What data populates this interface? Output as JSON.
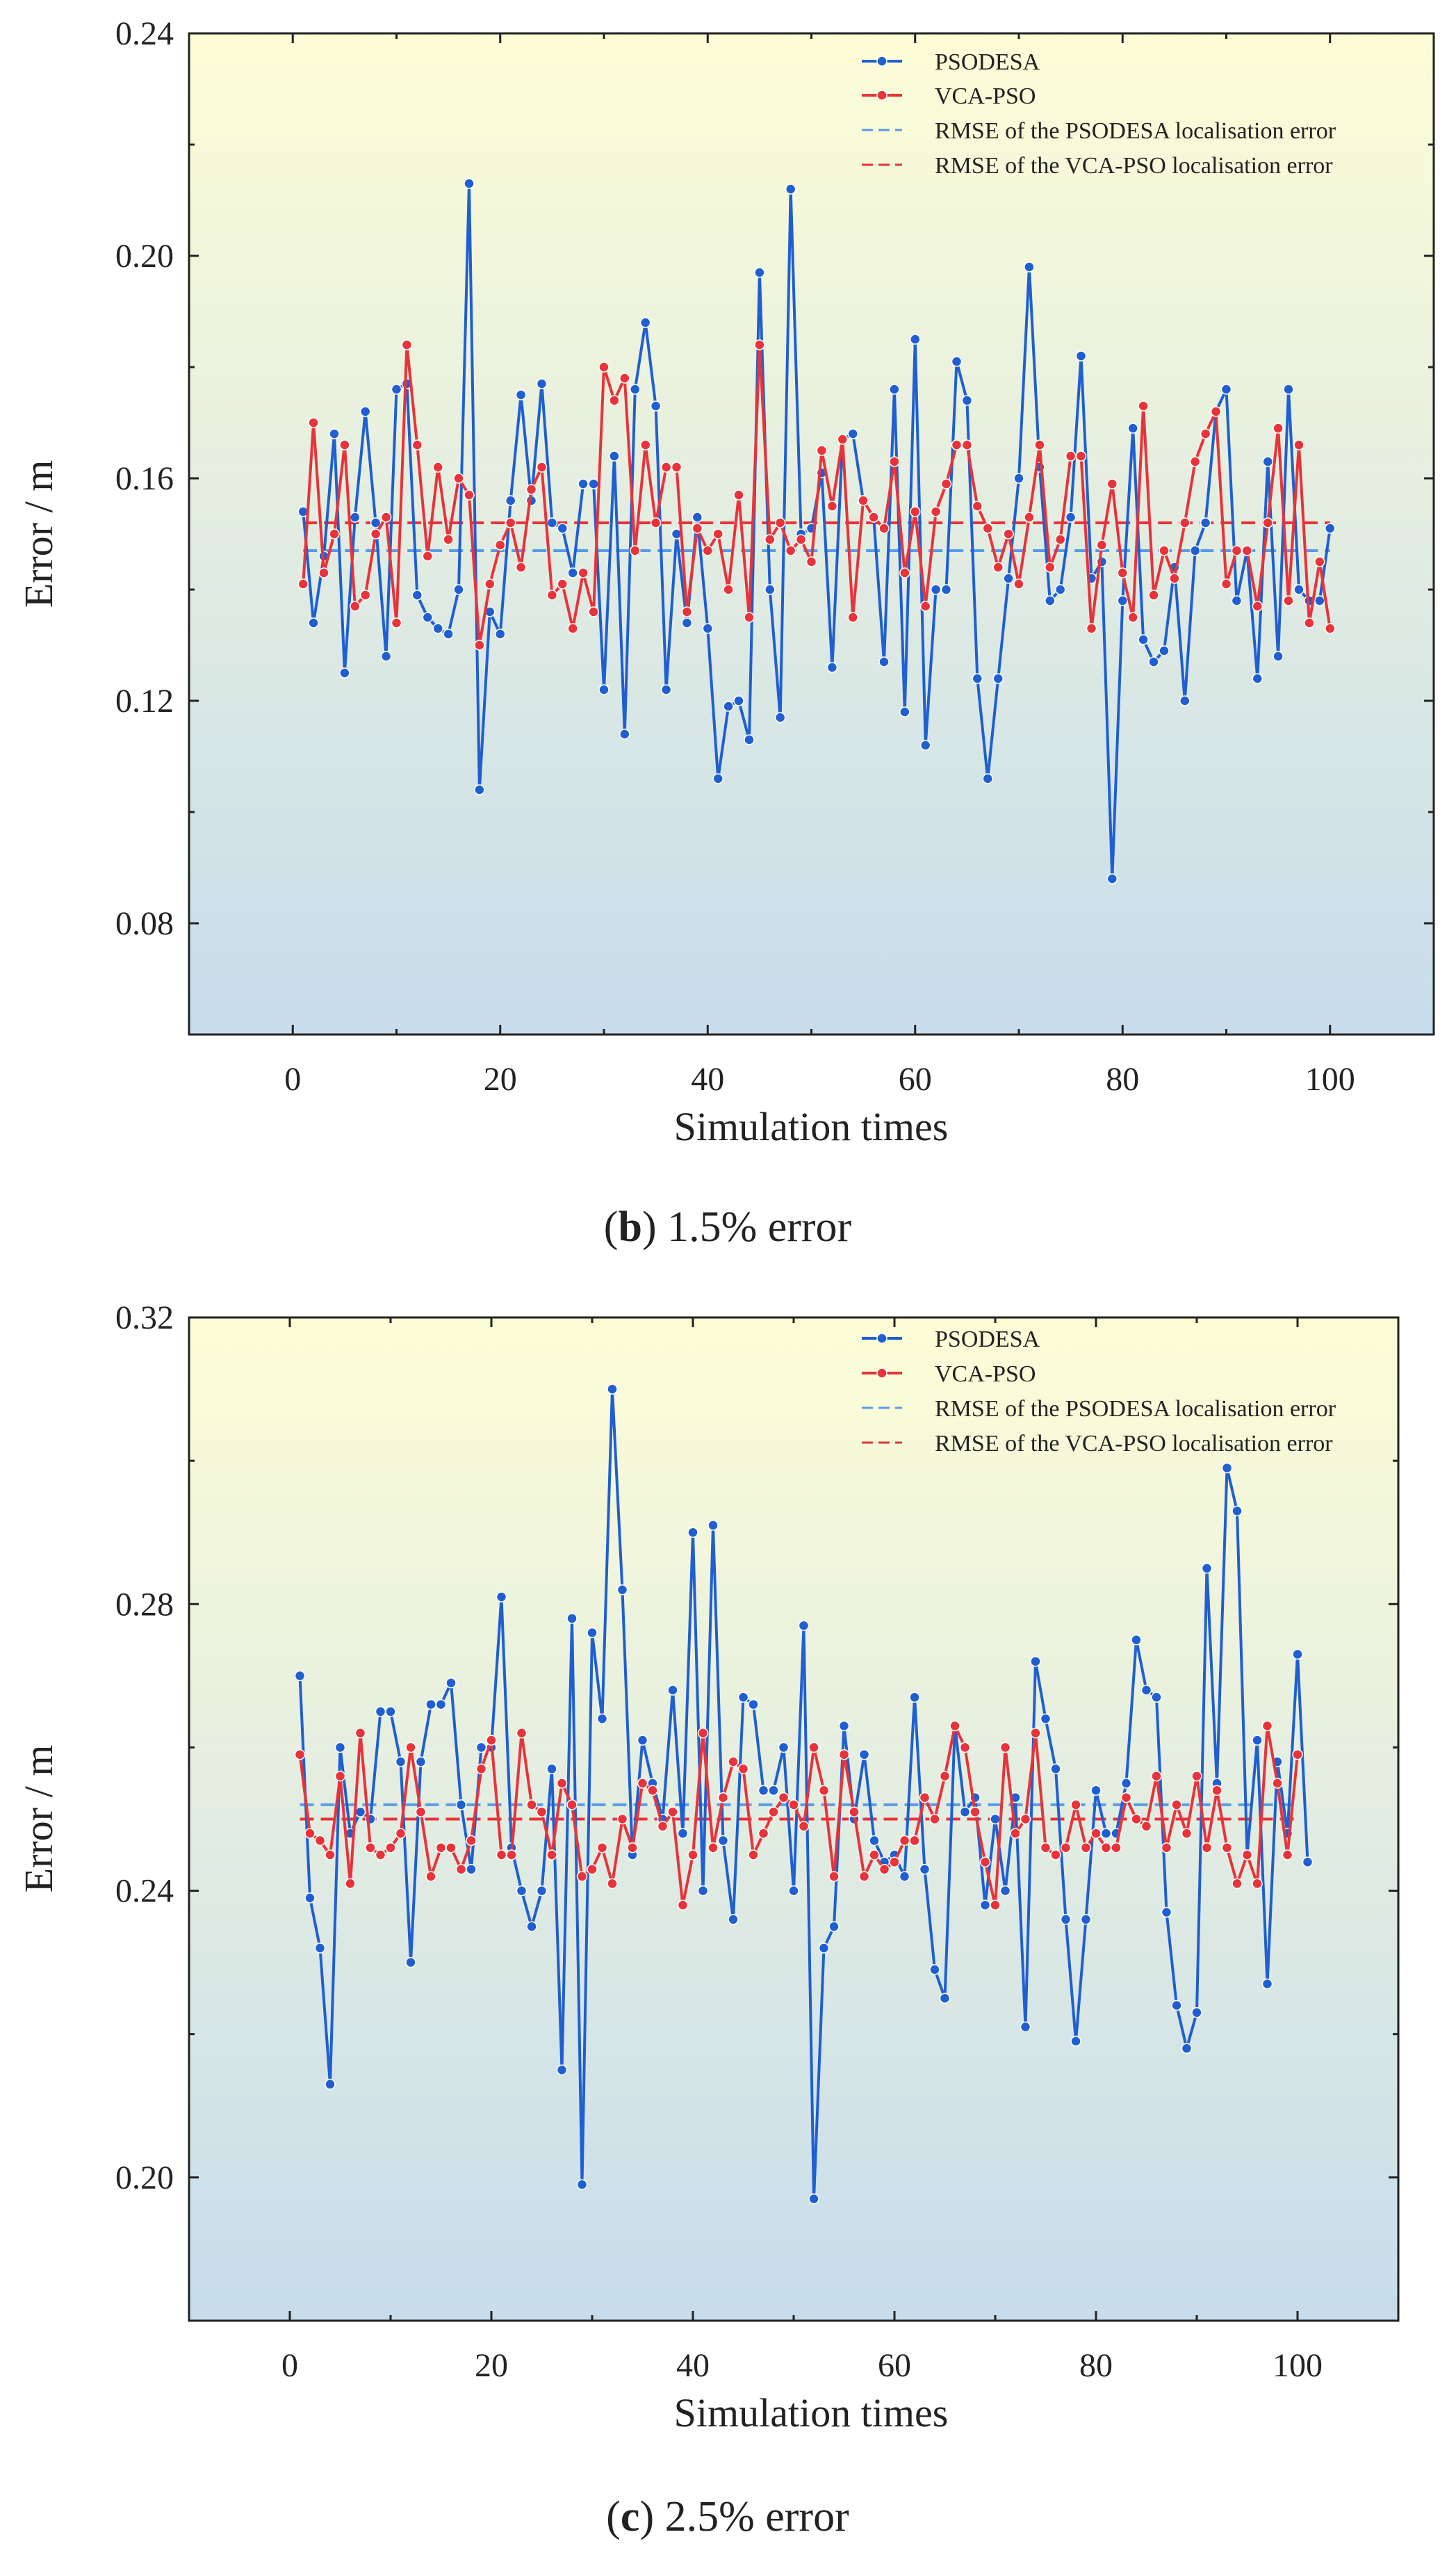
{
  "colors": {
    "psodesa": "#1f5fd1",
    "vca_pso": "#e8333a",
    "rmse_psodesa": "#5b9be6",
    "rmse_vca_pso": "#e8333a",
    "bg_top": "#fdfdd6",
    "bg_bottom": "#c7dcec"
  },
  "chart_data": [
    {
      "id": "b",
      "type": "line",
      "xlabel": "Simulation times",
      "ylabel": "Error / m",
      "xlim": [
        -10,
        110
      ],
      "ylim": [
        0.06,
        0.24
      ],
      "xticks": [
        0,
        20,
        40,
        60,
        80,
        100
      ],
      "xtick_labels": [
        "0",
        "20",
        "40",
        "60",
        "80",
        "100"
      ],
      "yticks": [
        0.08,
        0.12,
        0.16,
        0.2,
        0.24
      ],
      "ytick_labels": [
        "0.08",
        "0.12",
        "0.16",
        "0.20",
        "0.24"
      ],
      "caption": {
        "letter": "b",
        "text": " 1.5% error"
      },
      "legend": {
        "position": "top-right",
        "entries": [
          "PSODESA",
          "VCA-PSO",
          "RMSE of the PSODESA localisation error",
          "RMSE of the VCA-PSO localisation error"
        ]
      },
      "series": [
        {
          "name": "PSODESA",
          "x_start": 1,
          "values": [
            0.154,
            0.134,
            0.146,
            0.168,
            0.125,
            0.153,
            0.172,
            0.152,
            0.128,
            0.176,
            0.177,
            0.139,
            0.135,
            0.133,
            0.132,
            0.14,
            0.213,
            0.104,
            0.136,
            0.132,
            0.156,
            0.175,
            0.156,
            0.177,
            0.152,
            0.151,
            0.143,
            0.159,
            0.159,
            0.122,
            0.164,
            0.114,
            0.176,
            0.188,
            0.173,
            0.122,
            0.15,
            0.134,
            0.153,
            0.133,
            0.106,
            0.119,
            0.12,
            0.113,
            0.197,
            0.14,
            0.117,
            0.212,
            0.15,
            0.151,
            0.161,
            0.126,
            0.167,
            0.168,
            0.156,
            0.153,
            0.127,
            0.176,
            0.118,
            0.185,
            0.112,
            0.14,
            0.14,
            0.181,
            0.174,
            0.124,
            0.106,
            0.124,
            0.142,
            0.16,
            0.198,
            0.162,
            0.138,
            0.14,
            0.153,
            0.182,
            0.142,
            0.145,
            0.088,
            0.138,
            0.169,
            0.131,
            0.127,
            0.129,
            0.144,
            0.12,
            0.147,
            0.152,
            0.172,
            0.176,
            0.138,
            0.147,
            0.124,
            0.163,
            0.128,
            0.176,
            0.14,
            0.138,
            0.138,
            0.151
          ]
        },
        {
          "name": "VCA-PSO",
          "x_start": 1,
          "values": [
            0.141,
            0.17,
            0.143,
            0.15,
            0.166,
            0.137,
            0.139,
            0.15,
            0.153,
            0.134,
            0.184,
            0.166,
            0.146,
            0.162,
            0.149,
            0.16,
            0.157,
            0.13,
            0.141,
            0.148,
            0.152,
            0.144,
            0.158,
            0.162,
            0.139,
            0.141,
            0.133,
            0.143,
            0.136,
            0.18,
            0.174,
            0.178,
            0.147,
            0.166,
            0.152,
            0.162,
            0.162,
            0.136,
            0.151,
            0.147,
            0.15,
            0.14,
            0.157,
            0.135,
            0.184,
            0.149,
            0.152,
            0.147,
            0.149,
            0.145,
            0.165,
            0.155,
            0.167,
            0.135,
            0.156,
            0.153,
            0.151,
            0.163,
            0.143,
            0.154,
            0.137,
            0.154,
            0.159,
            0.166,
            0.166,
            0.155,
            0.151,
            0.144,
            0.15,
            0.141,
            0.153,
            0.166,
            0.144,
            0.149,
            0.164,
            0.164,
            0.133,
            0.148,
            0.159,
            0.143,
            0.135,
            0.173,
            0.139,
            0.147,
            0.142,
            0.152,
            0.163,
            0.168,
            0.172,
            0.141,
            0.147,
            0.147,
            0.137,
            0.152,
            0.169,
            0.138,
            0.166,
            0.134,
            0.145,
            0.133
          ]
        },
        {
          "name": "RMSE of the PSODESA localisation error",
          "style": "dashed",
          "value": 0.147
        },
        {
          "name": "RMSE of the VCA-PSO localisation error",
          "style": "dashed",
          "value": 0.152
        }
      ]
    },
    {
      "id": "c",
      "type": "line",
      "xlabel": "Simulation times",
      "ylabel": "Error / m",
      "xlim": [
        -10,
        110
      ],
      "ylim": [
        0.18,
        0.32
      ],
      "xticks": [
        0,
        20,
        40,
        60,
        80,
        100
      ],
      "xtick_labels": [
        "0",
        "20",
        "40",
        "60",
        "80",
        "100"
      ],
      "yticks": [
        0.2,
        0.24,
        0.28,
        0.32
      ],
      "ytick_labels": [
        "0.20",
        "0.24",
        "0.28",
        "0.32"
      ],
      "caption": {
        "letter": "c",
        "text": " 2.5% error"
      },
      "legend": {
        "position": "top-right",
        "entries": [
          "PSODESA",
          "VCA-PSO",
          "RMSE of the PSODESA localisation error",
          "RMSE of the VCA-PSO localisation error"
        ]
      },
      "series": [
        {
          "name": "PSODESA",
          "x_start": 1,
          "values": [
            0.27,
            0.239,
            0.232,
            0.213,
            0.26,
            0.248,
            0.251,
            0.25,
            0.265,
            0.265,
            0.258,
            0.23,
            0.258,
            0.266,
            0.266,
            0.269,
            0.252,
            0.243,
            0.26,
            0.26,
            0.281,
            0.246,
            0.24,
            0.235,
            0.24,
            0.257,
            0.215,
            0.278,
            0.199,
            0.276,
            0.264,
            0.31,
            0.282,
            0.245,
            0.261,
            0.255,
            0.25,
            0.268,
            0.248,
            0.29,
            0.24,
            0.291,
            0.247,
            0.236,
            0.267,
            0.266,
            0.254,
            0.254,
            0.26,
            0.24,
            0.277,
            0.197,
            0.232,
            0.235,
            0.263,
            0.25,
            0.259,
            0.247,
            0.244,
            0.245,
            0.242,
            0.267,
            0.243,
            0.229,
            0.225,
            0.263,
            0.251,
            0.253,
            0.238,
            0.25,
            0.24,
            0.253,
            0.221,
            0.272,
            0.264,
            0.257,
            0.236,
            0.219,
            0.236,
            0.254,
            0.248,
            0.248,
            0.255,
            0.275,
            0.268,
            0.267,
            0.237,
            0.224,
            0.218,
            0.223,
            0.285,
            0.255,
            0.299,
            0.293,
            0.245,
            0.261,
            0.227,
            0.258,
            0.248,
            0.273,
            0.244
          ]
        },
        {
          "name": "VCA-PSO",
          "x_start": 1,
          "values": [
            0.259,
            0.248,
            0.247,
            0.245,
            0.256,
            0.241,
            0.262,
            0.246,
            0.245,
            0.246,
            0.248,
            0.26,
            0.251,
            0.242,
            0.246,
            0.246,
            0.243,
            0.247,
            0.257,
            0.261,
            0.245,
            0.245,
            0.262,
            0.252,
            0.251,
            0.245,
            0.255,
            0.252,
            0.242,
            0.243,
            0.246,
            0.241,
            0.25,
            0.246,
            0.255,
            0.254,
            0.249,
            0.251,
            0.238,
            0.245,
            0.262,
            0.246,
            0.253,
            0.258,
            0.257,
            0.245,
            0.248,
            0.251,
            0.253,
            0.252,
            0.249,
            0.26,
            0.254,
            0.242,
            0.259,
            0.251,
            0.242,
            0.245,
            0.243,
            0.244,
            0.247,
            0.247,
            0.253,
            0.25,
            0.256,
            0.263,
            0.26,
            0.251,
            0.244,
            0.238,
            0.26,
            0.248,
            0.25,
            0.262,
            0.246,
            0.245,
            0.246,
            0.252,
            0.246,
            0.248,
            0.246,
            0.246,
            0.253,
            0.25,
            0.249,
            0.256,
            0.246,
            0.252,
            0.248,
            0.256,
            0.246,
            0.254,
            0.246,
            0.241,
            0.245,
            0.241,
            0.263,
            0.255,
            0.245,
            0.259
          ]
        },
        {
          "name": "RMSE of the PSODESA localisation error",
          "style": "dashed",
          "value": 0.252
        },
        {
          "name": "RMSE of the VCA-PSO localisation error",
          "style": "dashed",
          "value": 0.25
        }
      ]
    }
  ]
}
